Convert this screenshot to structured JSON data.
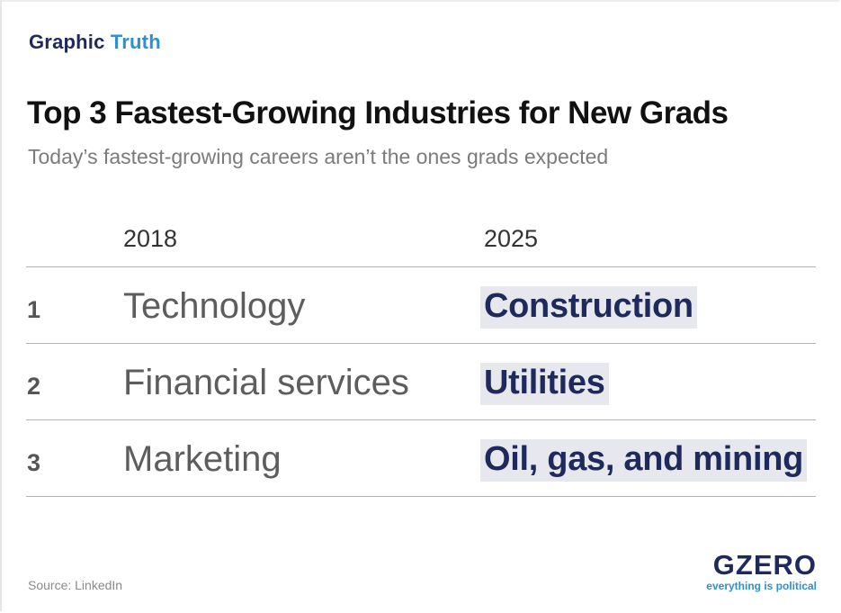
{
  "header": {
    "kicker_part1": "Graphic",
    "kicker_part2": "Truth",
    "title": "Top 3 Fastest-Growing Industries for New Grads",
    "subtitle": "Today’s fastest-growing careers aren’t the ones grads expected"
  },
  "chart_data": {
    "type": "table",
    "title": "Top 3 Fastest-Growing Industries for New Grads",
    "subtitle": "Today’s fastest-growing careers aren’t the ones grads expected",
    "columns": [
      "2018",
      "2025"
    ],
    "rows": [
      {
        "rank": "1",
        "y2018": "Technology",
        "y2025": "Construction"
      },
      {
        "rank": "2",
        "y2018": "Financial services",
        "y2025": "Utilities"
      },
      {
        "rank": "3",
        "y2018": "Marketing",
        "y2025": "Oil, gas, and mining"
      }
    ]
  },
  "footer": {
    "source": "Source: LinkedIn",
    "logo_brand": "GZERO",
    "logo_tagline": "everything is political"
  },
  "colors": {
    "navy": "#1d2a5b",
    "accent_blue": "#2f8fd0",
    "highlight_bg": "#e6e8ee"
  }
}
